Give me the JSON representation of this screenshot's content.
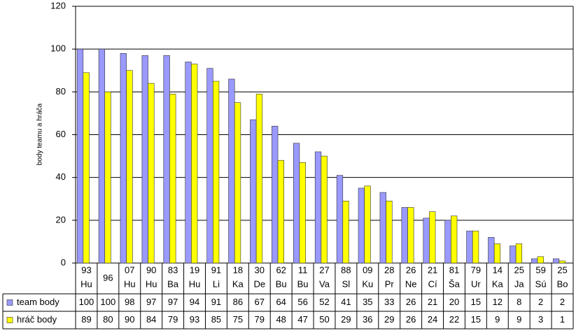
{
  "chart_data": {
    "type": "bar",
    "y_label": "body teamu a hráča",
    "categories": [
      [
        "93",
        "Hu"
      ],
      [
        "96"
      ],
      [
        "07",
        "Hu"
      ],
      [
        "90",
        "Hu"
      ],
      [
        "83",
        "Ba"
      ],
      [
        "19",
        "Hu"
      ],
      [
        "91",
        "Li"
      ],
      [
        "18",
        "Ka"
      ],
      [
        "30",
        "De"
      ],
      [
        "62",
        "Bu"
      ],
      [
        "11",
        "Bu"
      ],
      [
        "27",
        "Va"
      ],
      [
        "88",
        "Sl"
      ],
      [
        "09",
        "Ku"
      ],
      [
        "28",
        "Pr"
      ],
      [
        "26",
        "Ne"
      ],
      [
        "21",
        "Cí"
      ],
      [
        "81",
        "Ša"
      ],
      [
        "79",
        "Ur"
      ],
      [
        "14",
        "Ka"
      ],
      [
        "25",
        "Ja"
      ],
      [
        "59",
        "Sú"
      ],
      [
        "25",
        "Bo"
      ]
    ],
    "series": [
      {
        "name": "team body",
        "color": "#9999ff",
        "values": [
          100,
          100,
          98,
          97,
          97,
          94,
          91,
          86,
          67,
          64,
          56,
          52,
          41,
          35,
          33,
          26,
          21,
          20,
          15,
          12,
          8,
          2,
          2
        ]
      },
      {
        "name": "hráč body",
        "color": "#ffff00",
        "values": [
          89,
          80,
          90,
          84,
          79,
          93,
          85,
          75,
          79,
          48,
          47,
          50,
          29,
          36,
          29,
          26,
          24,
          22,
          15,
          9,
          9,
          3,
          1
        ]
      }
    ],
    "ylim": [
      0,
      120
    ],
    "yticks": [
      0,
      20,
      40,
      60,
      80,
      100,
      120
    ],
    "grid": true
  }
}
